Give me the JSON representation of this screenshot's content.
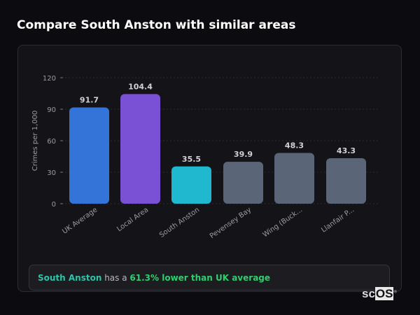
{
  "title": "Compare South Anston with similar areas",
  "chart_data": {
    "type": "bar",
    "title": "",
    "xlabel": "",
    "ylabel": "Crimes per 1,000",
    "ylim": [
      0,
      120
    ],
    "yticks": [
      0,
      30,
      60,
      90,
      120
    ],
    "grid": true,
    "categories": [
      "UK Average",
      "Local Area",
      "South Anston",
      "Pevensey Bay",
      "Wing (Buck...",
      "Llanfair P..."
    ],
    "values": [
      91.7,
      104.4,
      35.5,
      39.9,
      48.3,
      43.3
    ],
    "data_labels": [
      "91.7",
      "104.4",
      "35.5",
      "39.9",
      "48.3",
      "43.3"
    ],
    "colors": [
      "#3474d8",
      "#7a50d4",
      "#1fb8cf",
      "#5a6678",
      "#5a6678",
      "#5a6678"
    ]
  },
  "summary": {
    "area": "South Anston",
    "middle": " has a ",
    "highlight": "61.3% lower than UK average"
  },
  "logo": {
    "text_a": "sc",
    "text_b": "OS",
    "mark": "®"
  }
}
